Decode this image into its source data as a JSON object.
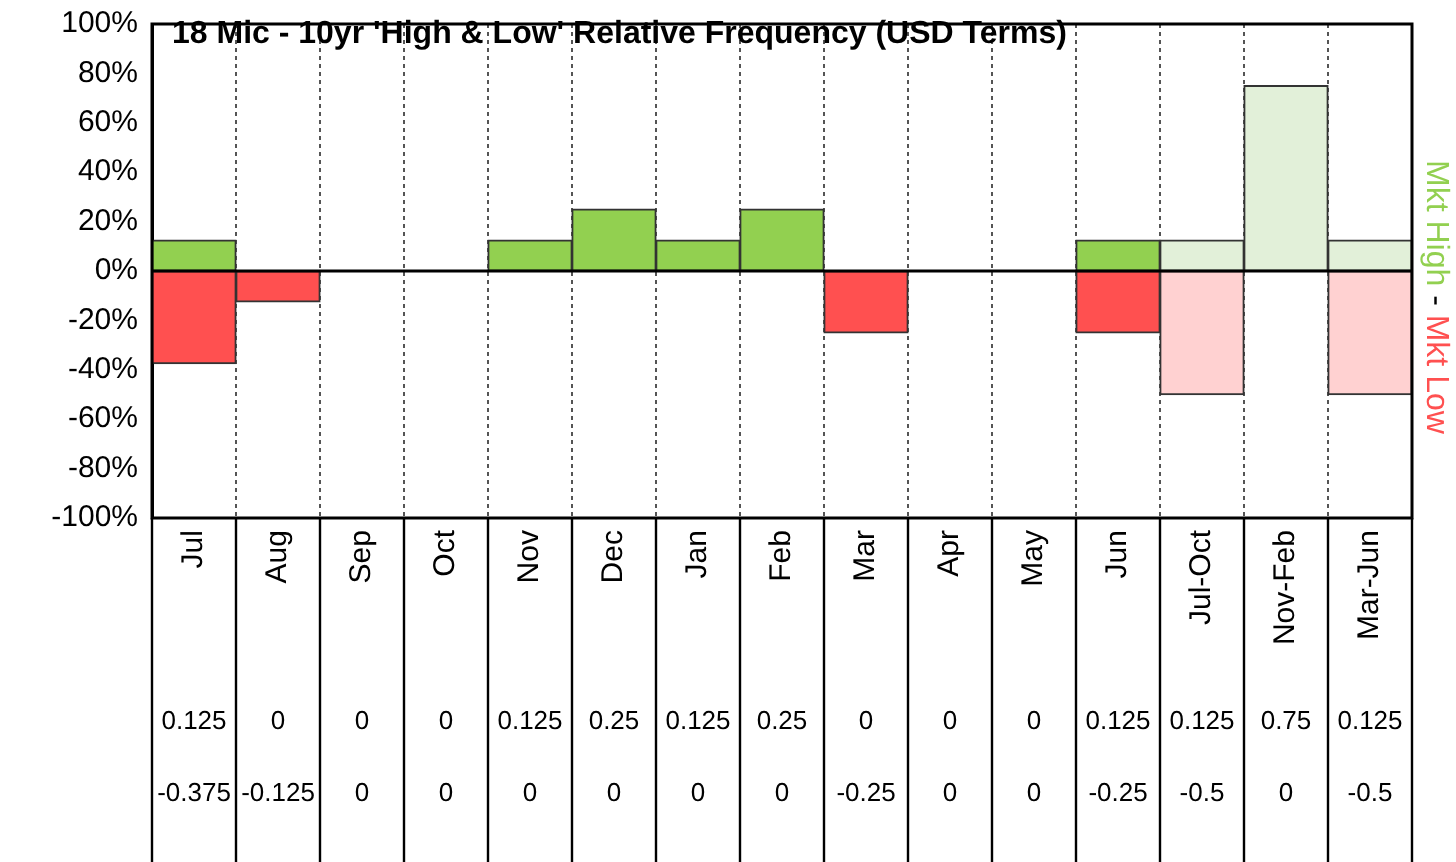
{
  "chart_data": {
    "type": "bar",
    "title": "18 Mic - 10yr 'High & Low' Relative Frequency (USD Terms)",
    "categories": [
      "Jul",
      "Aug",
      "Sep",
      "Oct",
      "Nov",
      "Dec",
      "Jan",
      "Feb",
      "Mar",
      "Apr",
      "May",
      "Jun",
      "Jul-Oct",
      "Nov-Feb",
      "Mar-Jun"
    ],
    "stacked": true,
    "series": [
      {
        "name": "Mkt High",
        "color": "#92d050",
        "colors": [
          "#92d050",
          "#92d050",
          "#92d050",
          "#92d050",
          "#92d050",
          "#92d050",
          "#92d050",
          "#92d050",
          "#92d050",
          "#92d050",
          "#92d050",
          "#92d050",
          "#e2f0d9",
          "#e2f0d9",
          "#e2f0d9"
        ],
        "values": [
          0.125,
          0,
          0,
          0,
          0.125,
          0.25,
          0.125,
          0.25,
          0,
          0,
          0,
          0.125,
          0.125,
          0.75,
          0.125
        ],
        "value_labels": [
          "0.125",
          "0",
          "0",
          "0",
          "0.125",
          "0.25",
          "0.125",
          "0.25",
          "0",
          "0",
          "0",
          "0.125",
          "0.125",
          "0.75",
          "0.125"
        ]
      },
      {
        "name": "Mkt Low",
        "color": "#ff5050",
        "colors": [
          "#ff5050",
          "#ff5050",
          "#ff5050",
          "#ff5050",
          "#ff5050",
          "#ff5050",
          "#ff5050",
          "#ff5050",
          "#ff5050",
          "#ff5050",
          "#ff5050",
          "#ff5050",
          "#ffd1d1",
          "#ffd1d1",
          "#ffd1d1"
        ],
        "values": [
          -0.375,
          -0.125,
          0,
          0,
          0,
          0,
          0,
          0,
          -0.25,
          0,
          0,
          -0.25,
          -0.5,
          0,
          -0.5
        ],
        "value_labels": [
          "-0.375",
          "-0.125",
          "0",
          "0",
          "0",
          "0",
          "0",
          "0",
          "-0.25",
          "0",
          "0",
          "-0.25",
          "-0.5",
          "0",
          "-0.5"
        ]
      }
    ],
    "annotations": [
      "-"
    ],
    "ylim": [
      -1,
      1
    ],
    "yticks": [
      {
        "value": -1,
        "label": "-100%"
      },
      {
        "value": -0.8,
        "label": "-80%"
      },
      {
        "value": -0.6,
        "label": "-60%"
      },
      {
        "value": -0.4,
        "label": "-40%"
      },
      {
        "value": -0.2,
        "label": "-20%"
      },
      {
        "value": 0,
        "label": "0%"
      },
      {
        "value": 0.2,
        "label": "20%"
      },
      {
        "value": 0.4,
        "label": "40%"
      },
      {
        "value": 0.6,
        "label": "60%"
      },
      {
        "value": 0.8,
        "label": "80%"
      },
      {
        "value": 1,
        "label": "100%"
      }
    ],
    "grid": "x",
    "legend": false
  }
}
